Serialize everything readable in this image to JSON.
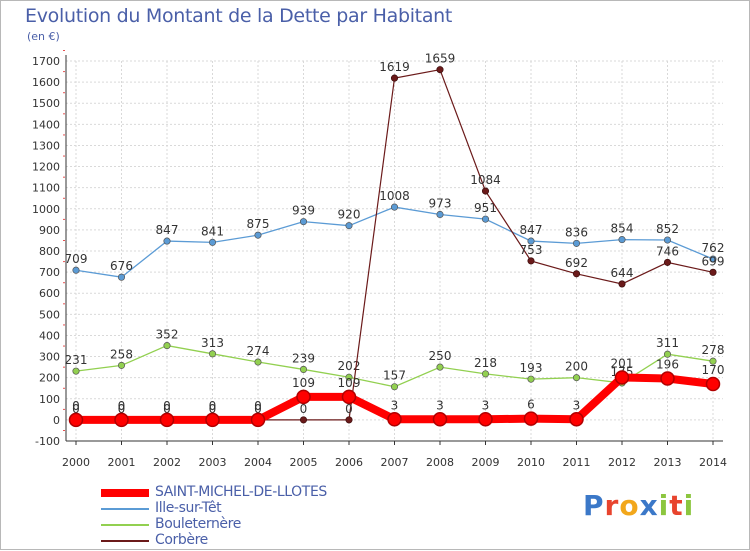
{
  "chart_data": {
    "type": "line",
    "title": "Evolution du Montant de la Dette par Habitant",
    "subtitle": "(en €)",
    "x": [
      "2000",
      "2001",
      "2002",
      "2003",
      "2004",
      "2005",
      "2006",
      "2007",
      "2008",
      "2009",
      "2010",
      "2011",
      "2012",
      "2013",
      "2014"
    ],
    "ylim": [
      -100,
      1700
    ],
    "yticks": [
      -100,
      0,
      100,
      200,
      300,
      400,
      500,
      600,
      700,
      800,
      900,
      1000,
      1100,
      1200,
      1300,
      1400,
      1500,
      1600,
      1700
    ],
    "grid": true,
    "legend_position": "bottom-left",
    "series": [
      {
        "name": "SAINT-MICHEL-DE-LLOTES",
        "color": "#ff0000",
        "values": [
          0,
          0,
          0,
          0,
          0,
          109,
          109,
          3,
          3,
          3,
          6,
          3,
          201,
          196,
          170
        ],
        "labels": [
          "0",
          "0",
          "0",
          "0",
          "0",
          "109",
          "109",
          "3",
          "3",
          "3",
          "6",
          "3",
          "201",
          "196",
          "170"
        ]
      },
      {
        "name": "Ille-sur-Têt",
        "color": "#5b9bd5",
        "values": [
          709,
          676,
          847,
          841,
          875,
          939,
          920,
          1008,
          973,
          951,
          847,
          836,
          854,
          852,
          762
        ],
        "labels": [
          "709",
          "676",
          "847",
          "841",
          "875",
          "939",
          "920",
          "1008",
          "973",
          "951",
          "847",
          "836",
          "854",
          "852",
          "762"
        ]
      },
      {
        "name": "Bouleternère",
        "color": "#92d050",
        "values": [
          231,
          258,
          352,
          313,
          274,
          239,
          202,
          157,
          250,
          218,
          193,
          200,
          175,
          311,
          278
        ],
        "labels": [
          "231",
          "258",
          "352",
          "313",
          "274",
          "239",
          "202",
          "157",
          "250",
          "218",
          "193",
          "200",
          "175",
          "311",
          "278"
        ]
      },
      {
        "name": "Corbère",
        "color": "#6b1a1a",
        "values": [
          0,
          0,
          0,
          0,
          0,
          0,
          0,
          1619,
          1659,
          1084,
          753,
          692,
          644,
          746,
          699
        ],
        "labels": [
          "0",
          "0",
          "0",
          "0",
          "0",
          "0",
          "0",
          "1619",
          "1659",
          "1084",
          "753",
          "692",
          "644",
          "746",
          "699"
        ]
      }
    ]
  },
  "logo": {
    "letters": [
      "P",
      "r",
      "o",
      "x",
      "i",
      "t",
      "i"
    ],
    "colors": [
      "#3b78c8",
      "#e8442e",
      "#f2a71b",
      "#3b78c8",
      "#8cc63f",
      "#e8442e",
      "#8cc63f"
    ]
  }
}
